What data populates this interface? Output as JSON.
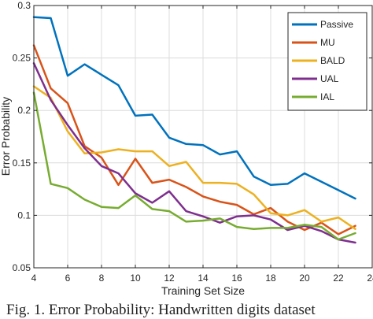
{
  "chart_data": {
    "type": "line",
    "title": "",
    "xlabel": "Training Set Size",
    "ylabel": "Error Probability",
    "xlim": [
      4,
      24
    ],
    "ylim": [
      0.05,
      0.3
    ],
    "xticks": [
      4,
      6,
      8,
      10,
      12,
      14,
      16,
      18,
      20,
      22,
      24
    ],
    "yticks": [
      0.05,
      0.1,
      0.15,
      0.2,
      0.25,
      0.3
    ],
    "xtick_labels": [
      "4",
      "6",
      "8",
      "10",
      "12",
      "14",
      "16",
      "18",
      "20",
      "22",
      "24"
    ],
    "ytick_labels": [
      "0.05",
      "0.1",
      "0.15",
      "0.2",
      "0.25",
      "0.3"
    ],
    "grid": true,
    "legend_position": "top-right",
    "x": [
      4,
      5,
      6,
      7,
      8,
      9,
      10,
      11,
      12,
      13,
      14,
      15,
      16,
      17,
      18,
      19,
      20,
      21,
      22,
      23
    ],
    "series": [
      {
        "name": "Passive",
        "color": "#0072BD",
        "values": [
          0.289,
          0.288,
          0.233,
          0.244,
          0.234,
          0.224,
          0.195,
          0.196,
          0.174,
          0.168,
          0.167,
          0.158,
          0.161,
          0.137,
          0.129,
          0.13,
          0.14,
          0.132,
          0.124,
          0.116
        ]
      },
      {
        "name": "MU",
        "color": "#D95319",
        "values": [
          0.262,
          0.221,
          0.207,
          0.166,
          0.155,
          0.129,
          0.154,
          0.131,
          0.134,
          0.127,
          0.118,
          0.113,
          0.11,
          0.101,
          0.107,
          0.094,
          0.086,
          0.093,
          0.082,
          0.09
        ]
      },
      {
        "name": "BALD",
        "color": "#EDB120",
        "values": [
          0.223,
          0.212,
          0.18,
          0.159,
          0.16,
          0.163,
          0.161,
          0.161,
          0.147,
          0.151,
          0.131,
          0.131,
          0.13,
          0.12,
          0.102,
          0.1,
          0.105,
          0.094,
          0.098,
          0.087
        ]
      },
      {
        "name": "UAL",
        "color": "#7E2F8E",
        "values": [
          0.245,
          0.21,
          0.186,
          0.164,
          0.147,
          0.14,
          0.121,
          0.112,
          0.123,
          0.104,
          0.099,
          0.093,
          0.099,
          0.1,
          0.096,
          0.086,
          0.09,
          0.085,
          0.077,
          0.074
        ]
      },
      {
        "name": "IAL",
        "color": "#77AC30",
        "values": [
          0.217,
          0.13,
          0.126,
          0.115,
          0.108,
          0.107,
          0.119,
          0.106,
          0.104,
          0.094,
          0.095,
          0.097,
          0.089,
          0.087,
          0.088,
          0.088,
          0.091,
          0.089,
          0.077,
          0.083
        ]
      }
    ]
  },
  "caption": {
    "text": "Fig. 1. Error Probability: Handwritten digits dataset"
  }
}
